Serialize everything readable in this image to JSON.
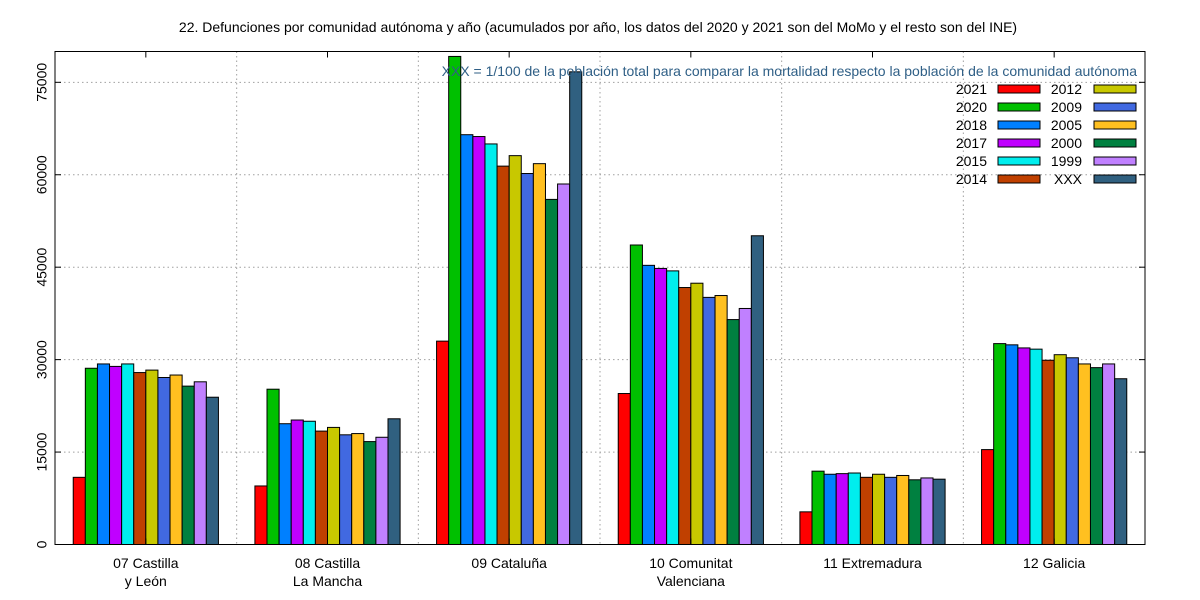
{
  "chart_data": {
    "type": "bar",
    "title": "22. Defunciones por comunidad autónoma y año (acumulados por año, los datos del 2020 y 2021 son del MoMo y el resto son del INE)",
    "annotation": "XXX = 1/100 de la población total para comparar la mortalidad respecto la población de la comunidad autónoma",
    "xlabel": "",
    "ylabel": "",
    "ylim": [
      0,
      80000
    ],
    "yticks": [
      0,
      15000,
      30000,
      45000,
      60000,
      75000
    ],
    "grid": true,
    "legend_position": "top-right",
    "categories": [
      [
        "07 Castilla",
        "y León"
      ],
      [
        "08 Castilla",
        "La Mancha"
      ],
      [
        "09 Cataluña"
      ],
      [
        "10 Comunitat",
        "Valenciana"
      ],
      [
        "11 Extremadura"
      ],
      [
        "12 Galicia"
      ]
    ],
    "series": [
      {
        "name": "2021",
        "color": "#ff0000",
        "values": [
          10900,
          9500,
          33000,
          24500,
          5300,
          15400
        ]
      },
      {
        "name": "2020",
        "color": "#00c000",
        "values": [
          28600,
          25200,
          79200,
          48600,
          11900,
          32600
        ]
      },
      {
        "name": "2018",
        "color": "#0080ff",
        "values": [
          29300,
          19600,
          66500,
          45300,
          11400,
          32400
        ]
      },
      {
        "name": "2017",
        "color": "#c000ff",
        "values": [
          28900,
          20200,
          66200,
          44800,
          11500,
          31900
        ]
      },
      {
        "name": "2015",
        "color": "#00eeee",
        "values": [
          29300,
          20000,
          65000,
          44400,
          11600,
          31700
        ]
      },
      {
        "name": "2014",
        "color": "#c04000",
        "values": [
          27900,
          18400,
          61400,
          41700,
          10900,
          29900
        ]
      },
      {
        "name": "2012",
        "color": "#c8c800",
        "values": [
          28300,
          19000,
          63100,
          42400,
          11400,
          30800
        ]
      },
      {
        "name": "2009",
        "color": "#4169e1",
        "values": [
          27100,
          17800,
          60200,
          40100,
          10900,
          30300
        ]
      },
      {
        "name": "2005",
        "color": "#ffc020",
        "values": [
          27500,
          18000,
          61800,
          40400,
          11200,
          29300
        ]
      },
      {
        "name": "2000",
        "color": "#008040",
        "values": [
          25700,
          16700,
          56000,
          36500,
          10500,
          28700
        ]
      },
      {
        "name": "1999",
        "color": "#c080ff",
        "values": [
          26400,
          17400,
          58500,
          38300,
          10800,
          29300
        ]
      },
      {
        "name": "XXX",
        "color": "#306080",
        "values": [
          23900,
          20400,
          76700,
          50100,
          10600,
          26900
        ]
      }
    ],
    "legend_columns": [
      [
        "2021",
        "2020",
        "2018",
        "2017",
        "2015",
        "2014"
      ],
      [
        "2012",
        "2009",
        "2005",
        "2000",
        "1999",
        "XXX"
      ]
    ]
  }
}
